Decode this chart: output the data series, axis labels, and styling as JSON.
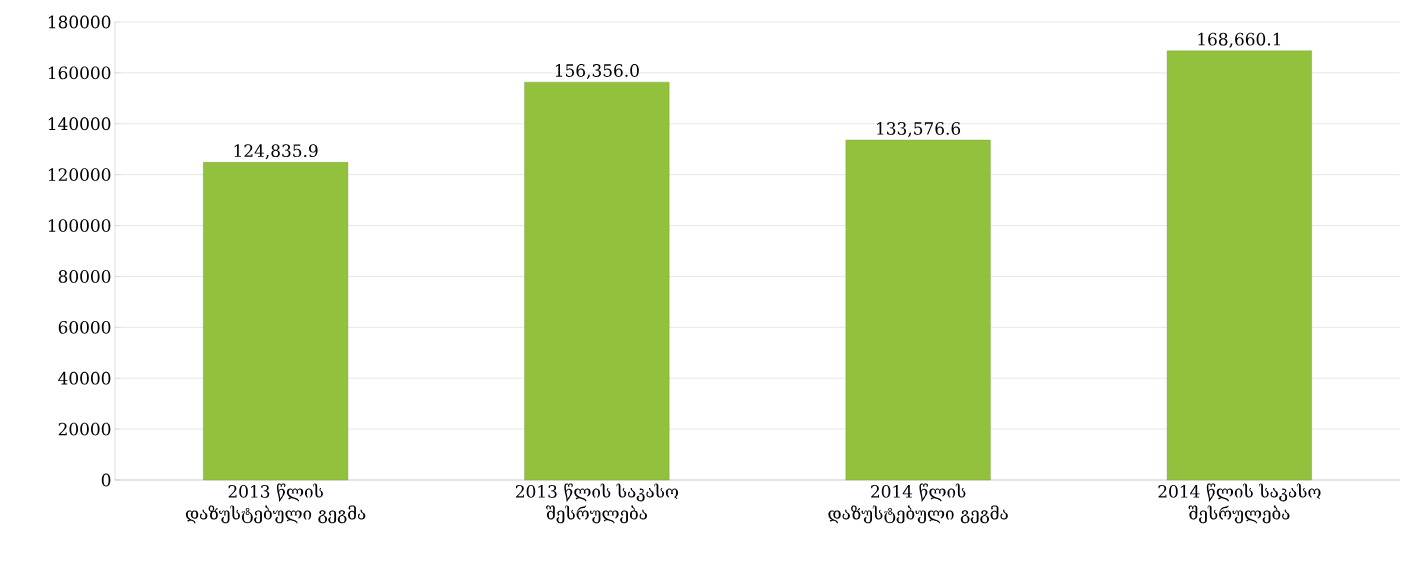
{
  "chart_data": {
    "type": "bar",
    "categories": [
      "2013 წლის დაზუსტებული გეგმა",
      "2013 წლის საკასო შესრულება",
      "2014 წლის დაზუსტებული გეგმა",
      "2014 წლის საკასო შესრულება"
    ],
    "values": [
      124835.9,
      156356.0,
      133576.6,
      168660.1
    ],
    "value_labels": [
      "124,835.9",
      "156,356.0",
      "133,576.6",
      "168,660.1"
    ],
    "color": "#92c13e",
    "ylim": [
      0,
      180000
    ],
    "yticks": [
      0,
      20000,
      40000,
      60000,
      80000,
      100000,
      120000,
      140000,
      160000,
      180000
    ],
    "grid": "y"
  }
}
